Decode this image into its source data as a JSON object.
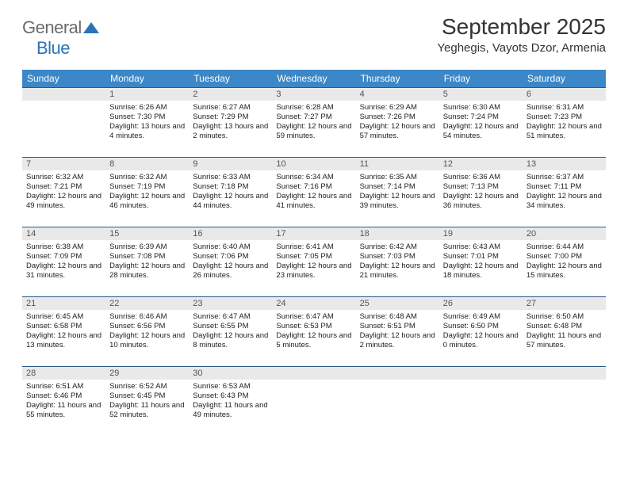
{
  "logo": {
    "text1": "General",
    "text2": "Blue"
  },
  "title": "September 2025",
  "location": "Yeghegis, Vayots Dzor, Armenia",
  "colors": {
    "header_bg": "#3c87c7",
    "header_text": "#ffffff",
    "daynum_bg": "#e9e9e9",
    "daynum_text": "#555555",
    "border": "#2a5a8a",
    "logo_gray": "#6b6b6b",
    "logo_blue": "#2a73b8",
    "text": "#222222"
  },
  "weekdays": [
    "Sunday",
    "Monday",
    "Tuesday",
    "Wednesday",
    "Thursday",
    "Friday",
    "Saturday"
  ],
  "leading_blanks": 1,
  "days": [
    {
      "n": "1",
      "sunrise": "6:26 AM",
      "sunset": "7:30 PM",
      "daylight": "13 hours and 4 minutes."
    },
    {
      "n": "2",
      "sunrise": "6:27 AM",
      "sunset": "7:29 PM",
      "daylight": "13 hours and 2 minutes."
    },
    {
      "n": "3",
      "sunrise": "6:28 AM",
      "sunset": "7:27 PM",
      "daylight": "12 hours and 59 minutes."
    },
    {
      "n": "4",
      "sunrise": "6:29 AM",
      "sunset": "7:26 PM",
      "daylight": "12 hours and 57 minutes."
    },
    {
      "n": "5",
      "sunrise": "6:30 AM",
      "sunset": "7:24 PM",
      "daylight": "12 hours and 54 minutes."
    },
    {
      "n": "6",
      "sunrise": "6:31 AM",
      "sunset": "7:23 PM",
      "daylight": "12 hours and 51 minutes."
    },
    {
      "n": "7",
      "sunrise": "6:32 AM",
      "sunset": "7:21 PM",
      "daylight": "12 hours and 49 minutes."
    },
    {
      "n": "8",
      "sunrise": "6:32 AM",
      "sunset": "7:19 PM",
      "daylight": "12 hours and 46 minutes."
    },
    {
      "n": "9",
      "sunrise": "6:33 AM",
      "sunset": "7:18 PM",
      "daylight": "12 hours and 44 minutes."
    },
    {
      "n": "10",
      "sunrise": "6:34 AM",
      "sunset": "7:16 PM",
      "daylight": "12 hours and 41 minutes."
    },
    {
      "n": "11",
      "sunrise": "6:35 AM",
      "sunset": "7:14 PM",
      "daylight": "12 hours and 39 minutes."
    },
    {
      "n": "12",
      "sunrise": "6:36 AM",
      "sunset": "7:13 PM",
      "daylight": "12 hours and 36 minutes."
    },
    {
      "n": "13",
      "sunrise": "6:37 AM",
      "sunset": "7:11 PM",
      "daylight": "12 hours and 34 minutes."
    },
    {
      "n": "14",
      "sunrise": "6:38 AM",
      "sunset": "7:09 PM",
      "daylight": "12 hours and 31 minutes."
    },
    {
      "n": "15",
      "sunrise": "6:39 AM",
      "sunset": "7:08 PM",
      "daylight": "12 hours and 28 minutes."
    },
    {
      "n": "16",
      "sunrise": "6:40 AM",
      "sunset": "7:06 PM",
      "daylight": "12 hours and 26 minutes."
    },
    {
      "n": "17",
      "sunrise": "6:41 AM",
      "sunset": "7:05 PM",
      "daylight": "12 hours and 23 minutes."
    },
    {
      "n": "18",
      "sunrise": "6:42 AM",
      "sunset": "7:03 PM",
      "daylight": "12 hours and 21 minutes."
    },
    {
      "n": "19",
      "sunrise": "6:43 AM",
      "sunset": "7:01 PM",
      "daylight": "12 hours and 18 minutes."
    },
    {
      "n": "20",
      "sunrise": "6:44 AM",
      "sunset": "7:00 PM",
      "daylight": "12 hours and 15 minutes."
    },
    {
      "n": "21",
      "sunrise": "6:45 AM",
      "sunset": "6:58 PM",
      "daylight": "12 hours and 13 minutes."
    },
    {
      "n": "22",
      "sunrise": "6:46 AM",
      "sunset": "6:56 PM",
      "daylight": "12 hours and 10 minutes."
    },
    {
      "n": "23",
      "sunrise": "6:47 AM",
      "sunset": "6:55 PM",
      "daylight": "12 hours and 8 minutes."
    },
    {
      "n": "24",
      "sunrise": "6:47 AM",
      "sunset": "6:53 PM",
      "daylight": "12 hours and 5 minutes."
    },
    {
      "n": "25",
      "sunrise": "6:48 AM",
      "sunset": "6:51 PM",
      "daylight": "12 hours and 2 minutes."
    },
    {
      "n": "26",
      "sunrise": "6:49 AM",
      "sunset": "6:50 PM",
      "daylight": "12 hours and 0 minutes."
    },
    {
      "n": "27",
      "sunrise": "6:50 AM",
      "sunset": "6:48 PM",
      "daylight": "11 hours and 57 minutes."
    },
    {
      "n": "28",
      "sunrise": "6:51 AM",
      "sunset": "6:46 PM",
      "daylight": "11 hours and 55 minutes."
    },
    {
      "n": "29",
      "sunrise": "6:52 AM",
      "sunset": "6:45 PM",
      "daylight": "11 hours and 52 minutes."
    },
    {
      "n": "30",
      "sunrise": "6:53 AM",
      "sunset": "6:43 PM",
      "daylight": "11 hours and 49 minutes."
    }
  ],
  "labels": {
    "sunrise": "Sunrise:",
    "sunset": "Sunset:",
    "daylight": "Daylight:"
  }
}
